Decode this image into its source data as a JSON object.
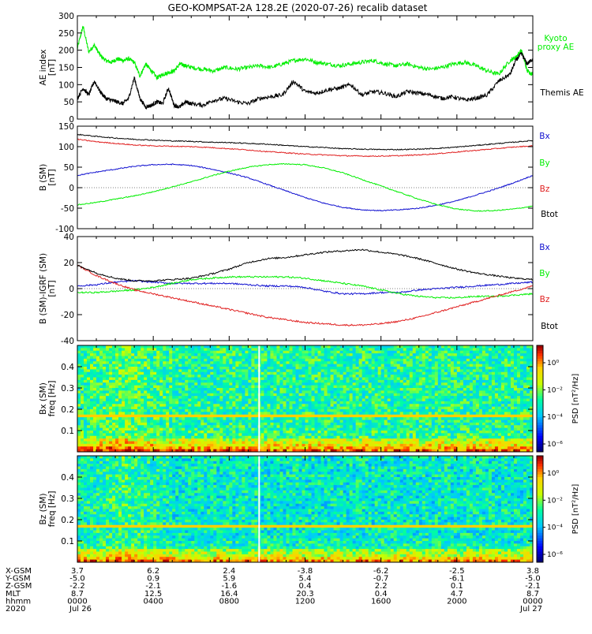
{
  "title": "GEO-KOMPSAT-2A 128.2E (2020-07-26) recalib dataset",
  "colors": {
    "black": "#000000",
    "green": "#00ee00",
    "red": "#e02020",
    "blue": "#1010d0",
    "axis": "#000000"
  },
  "chart_data": [
    {
      "id": "ae",
      "type": "line",
      "ylabel_lines": [
        "AE index",
        "[nT]"
      ],
      "ylim": [
        0,
        300
      ],
      "yticks": [
        "0",
        "50",
        "100",
        "150",
        "200",
        "250",
        "300"
      ],
      "xlim": [
        0,
        24
      ],
      "series": [
        {
          "name": "Kyoto proxy AE",
          "color_key": "green",
          "x": [
            0,
            0.3,
            0.6,
            0.9,
            1.2,
            1.5,
            1.8,
            2.1,
            2.4,
            2.7,
            3.0,
            3.3,
            3.6,
            3.9,
            4.2,
            4.5,
            4.8,
            5.1,
            5.4,
            5.7,
            6.0,
            6.6,
            7.2,
            7.8,
            8.4,
            9.0,
            9.6,
            10.2,
            10.8,
            11.4,
            12.0,
            12.6,
            13.2,
            13.8,
            14.4,
            15.0,
            15.6,
            16.2,
            16.8,
            17.4,
            18.0,
            18.6,
            19.2,
            19.8,
            20.4,
            21.0,
            21.6,
            22.2,
            22.8,
            23.1,
            23.4,
            23.7,
            24.0
          ],
          "y": [
            205,
            270,
            195,
            215,
            185,
            170,
            165,
            175,
            170,
            175,
            165,
            125,
            160,
            140,
            120,
            130,
            135,
            140,
            160,
            155,
            150,
            145,
            140,
            150,
            145,
            150,
            155,
            150,
            160,
            170,
            175,
            165,
            160,
            155,
            160,
            165,
            170,
            160,
            155,
            160,
            150,
            145,
            150,
            160,
            165,
            155,
            140,
            130,
            170,
            180,
            200,
            140,
            130
          ]
        },
        {
          "name": "Themis AE",
          "color_key": "black",
          "x": [
            0,
            0.3,
            0.6,
            0.9,
            1.2,
            1.5,
            1.8,
            2.1,
            2.4,
            2.7,
            3.0,
            3.3,
            3.6,
            3.9,
            4.2,
            4.5,
            4.8,
            5.1,
            5.4,
            5.7,
            6.0,
            6.6,
            7.2,
            7.8,
            8.4,
            9.0,
            9.6,
            10.2,
            10.8,
            11.4,
            12.0,
            12.6,
            13.2,
            13.8,
            14.4,
            15.0,
            15.6,
            16.2,
            16.8,
            17.4,
            18.0,
            18.6,
            19.2,
            19.8,
            20.4,
            21.0,
            21.6,
            22.2,
            22.8,
            23.1,
            23.4,
            23.7,
            24.0
          ],
          "y": [
            60,
            90,
            70,
            110,
            80,
            60,
            55,
            50,
            45,
            60,
            120,
            60,
            35,
            40,
            50,
            45,
            90,
            40,
            35,
            50,
            45,
            40,
            55,
            60,
            50,
            45,
            60,
            65,
            70,
            110,
            80,
            75,
            85,
            90,
            100,
            70,
            80,
            75,
            65,
            80,
            75,
            70,
            60,
            65,
            55,
            60,
            70,
            110,
            130,
            170,
            190,
            160,
            175
          ]
        }
      ]
    },
    {
      "id": "bsm",
      "type": "line",
      "ylabel_lines": [
        "B (SM)",
        "[nT]"
      ],
      "ylim": [
        -100,
        150
      ],
      "yticks": [
        "-100",
        "-50",
        "0",
        "50",
        "100",
        "150"
      ],
      "xlim": [
        0,
        24
      ],
      "series": [
        {
          "name": "Bx",
          "color_key": "blue",
          "x": [
            0,
            1,
            2,
            3,
            4,
            5,
            6,
            7,
            8,
            9,
            10,
            11,
            12,
            13,
            14,
            15,
            16,
            17,
            18,
            19,
            20,
            21,
            22,
            23,
            24
          ],
          "y": [
            30,
            38,
            45,
            52,
            56,
            57,
            54,
            46,
            36,
            24,
            8,
            -8,
            -24,
            -38,
            -48,
            -54,
            -56,
            -54,
            -50,
            -42,
            -32,
            -18,
            -4,
            12,
            30
          ]
        },
        {
          "name": "By",
          "color_key": "green",
          "x": [
            0,
            1,
            2,
            3,
            4,
            5,
            6,
            7,
            8,
            9,
            10,
            11,
            12,
            13,
            14,
            15,
            16,
            17,
            18,
            19,
            20,
            21,
            22,
            23,
            24
          ],
          "y": [
            -42,
            -36,
            -28,
            -20,
            -10,
            2,
            14,
            28,
            40,
            50,
            56,
            58,
            56,
            48,
            36,
            20,
            4,
            -12,
            -28,
            -42,
            -52,
            -57,
            -56,
            -52,
            -45
          ]
        },
        {
          "name": "Bz",
          "color_key": "red",
          "x": [
            0,
            1,
            2,
            3,
            4,
            5,
            6,
            7,
            8,
            9,
            10,
            11,
            12,
            13,
            14,
            15,
            16,
            17,
            18,
            19,
            20,
            21,
            22,
            23,
            24
          ],
          "y": [
            118,
            112,
            108,
            104,
            102,
            101,
            100,
            98,
            95,
            92,
            88,
            85,
            82,
            80,
            78,
            77,
            77,
            78,
            80,
            83,
            87,
            91,
            95,
            99,
            102
          ]
        },
        {
          "name": "Btot",
          "color_key": "black",
          "x": [
            0,
            1,
            2,
            3,
            4,
            5,
            6,
            7,
            8,
            9,
            10,
            11,
            12,
            13,
            14,
            15,
            16,
            17,
            18,
            19,
            20,
            21,
            22,
            23,
            24
          ],
          "y": [
            130,
            125,
            121,
            118,
            116,
            114,
            113,
            111,
            110,
            108,
            106,
            103,
            100,
            98,
            95,
            94,
            93,
            93,
            94,
            96,
            99,
            103,
            107,
            111,
            115
          ]
        }
      ]
    },
    {
      "id": "bdiff",
      "type": "line",
      "ylabel_lines": [
        "B (SM)-IGRF (SM)",
        "[nT]"
      ],
      "ylim": [
        -40,
        40
      ],
      "yticks": [
        "-40",
        "-20",
        "0",
        "20",
        "40"
      ],
      "xlim": [
        0,
        24
      ],
      "series": [
        {
          "name": "Bx",
          "color_key": "blue",
          "x": [
            0,
            1,
            2,
            3,
            4,
            5,
            6,
            7,
            8,
            9,
            10,
            11,
            12,
            13,
            14,
            15,
            16,
            17,
            18,
            19,
            20,
            21,
            22,
            23,
            24
          ],
          "y": [
            2,
            3,
            5,
            6,
            5,
            4,
            4,
            4,
            4,
            3,
            2,
            2,
            1,
            -2,
            -4,
            -4,
            -3,
            -3,
            -1,
            0,
            1,
            2,
            3,
            4,
            5
          ]
        },
        {
          "name": "By",
          "color_key": "green",
          "x": [
            0,
            1,
            2,
            3,
            4,
            5,
            6,
            7,
            8,
            9,
            10,
            11,
            12,
            13,
            14,
            15,
            16,
            17,
            18,
            19,
            20,
            21,
            22,
            23,
            24
          ],
          "y": [
            -3,
            -3,
            -2,
            -1,
            1,
            4,
            7,
            8,
            9,
            9,
            9,
            9,
            8,
            6,
            4,
            2,
            -1,
            -4,
            -6,
            -7,
            -7,
            -6,
            -6,
            -5,
            -4
          ]
        },
        {
          "name": "Bz",
          "color_key": "red",
          "x": [
            0,
            1,
            2,
            3,
            4,
            5,
            6,
            7,
            8,
            9,
            10,
            11,
            12,
            13,
            14,
            15,
            16,
            17,
            18,
            19,
            20,
            21,
            22,
            23,
            24
          ],
          "y": [
            18,
            10,
            4,
            -1,
            -4,
            -7,
            -10,
            -13,
            -16,
            -19,
            -22,
            -24,
            -26,
            -27,
            -28,
            -28,
            -27,
            -25,
            -22,
            -18,
            -14,
            -10,
            -6,
            -2,
            2
          ]
        },
        {
          "name": "Btot",
          "color_key": "black",
          "x": [
            0,
            1,
            2,
            3,
            4,
            5,
            6,
            7,
            8,
            9,
            10,
            11,
            12,
            13,
            14,
            15,
            16,
            17,
            18,
            19,
            20,
            21,
            22,
            23,
            24
          ],
          "y": [
            18,
            12,
            8,
            6,
            6,
            7,
            8,
            11,
            15,
            20,
            23,
            24,
            26,
            28,
            29,
            30,
            28,
            26,
            23,
            19,
            15,
            12,
            10,
            8,
            7
          ]
        }
      ]
    },
    {
      "id": "bxspec",
      "type": "heatmap",
      "ylabel_lines": [
        "Bx (SM)",
        "freq [Hz]"
      ],
      "ylim": [
        0,
        0.5
      ],
      "yticks": [
        "0.1",
        "0.2",
        "0.3",
        "0.4"
      ],
      "colorbar_label": "PSD [nT²/Hz]",
      "colorbar_ticks": [
        "10⁰",
        "10⁻²",
        "10⁻⁴",
        "10⁻⁶"
      ],
      "line_freq": 0.167,
      "gap_x": 9.58
    },
    {
      "id": "bzspec",
      "type": "heatmap",
      "ylabel_lines": [
        "Bz (SM)",
        "freq [Hz]"
      ],
      "ylim": [
        0,
        0.5
      ],
      "yticks": [
        "0.1",
        "0.2",
        "0.3",
        "0.4"
      ],
      "colorbar_label": "PSD [nT²/Hz]",
      "colorbar_ticks": [
        "10⁰",
        "10⁻²",
        "10⁻⁴",
        "10⁻⁶"
      ],
      "line_freq": 0.167,
      "gap_x": 9.58
    }
  ],
  "legends": {
    "ae": [
      {
        "text": "Kyoto",
        "color_key": "green"
      },
      {
        "text": "proxy AE",
        "color_key": "green"
      },
      {
        "text": "Themis AE",
        "color_key": "black"
      }
    ],
    "bsm": [
      {
        "text": "Bx",
        "color_key": "blue"
      },
      {
        "text": "By",
        "color_key": "green"
      },
      {
        "text": "Bz",
        "color_key": "red"
      },
      {
        "text": "Btot",
        "color_key": "black"
      }
    ],
    "bdiff": [
      {
        "text": "Bx",
        "color_key": "blue"
      },
      {
        "text": "By",
        "color_key": "green"
      },
      {
        "text": "Bz",
        "color_key": "red"
      },
      {
        "text": "Btot",
        "color_key": "black"
      }
    ]
  },
  "xaxis_rows": [
    {
      "label": "X-GSM",
      "values": [
        "3.7",
        "6.2",
        "2.4",
        "-3.8",
        "-6.2",
        "-2.5",
        "3.8"
      ]
    },
    {
      "label": "Y-GSM",
      "values": [
        "-5.0",
        "0.9",
        "5.9",
        "5.4",
        "-0.7",
        "-6.1",
        "-5.0"
      ]
    },
    {
      "label": "Z-GSM",
      "values": [
        "-2.2",
        "-2.1",
        "-1.6",
        "0.4",
        "2.2",
        "0.1",
        "-2.1"
      ]
    },
    {
      "label": "MLT",
      "values": [
        "8.7",
        "12.5",
        "16.4",
        "20.3",
        "0.4",
        "4.7",
        "8.7"
      ]
    },
    {
      "label": "hhmm",
      "values": [
        "0000",
        "0400",
        "0800",
        "1200",
        "1600",
        "2000",
        "0000"
      ]
    },
    {
      "label": "2020",
      "values": [
        "Jul 26",
        "",
        "",
        "",
        "",
        "",
        "Jul 27"
      ]
    }
  ],
  "xtick_hours": [
    0,
    4,
    8,
    12,
    16,
    20,
    24
  ]
}
